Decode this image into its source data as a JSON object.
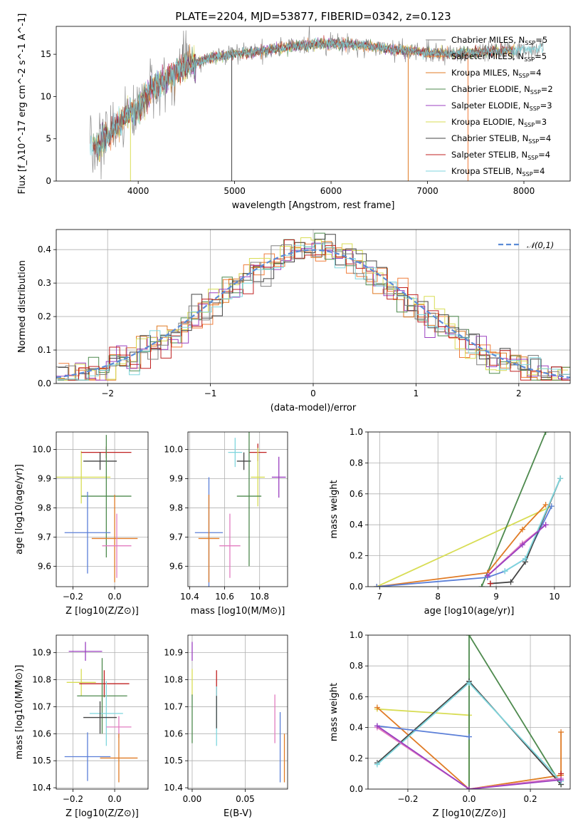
{
  "title": "PLATE=2204, MJD=53877, FIBERID=0342, z=0.123",
  "colors": {
    "c0": "#808080",
    "c1": "#f07d3a",
    "c2": "#e07b25",
    "c3": "#4e8a4e",
    "c4": "#9b40c0",
    "c5": "#d8dd55",
    "c6": "#444444",
    "c7": "#c02020",
    "c8": "#7fd6dd",
    "blue": "#5b7fd8",
    "pink": "#e27cc0",
    "normal": "#5b8bd6"
  },
  "chart_data": [
    {
      "id": "spectrum",
      "type": "line",
      "xlabel": "wavelength [Angstrom, rest frame]",
      "ylabel": "Flux [f_λ10^-17 erg cm^-2 s^-1 A^-1]",
      "xlim": [
        3150,
        8480
      ],
      "ylim": [
        0,
        18.3
      ],
      "xticks": [
        "4000",
        "5000",
        "6000",
        "7000",
        "8000"
      ],
      "yticks": [
        "0",
        "5",
        "10",
        "15"
      ],
      "grid": false,
      "legend": "right",
      "legend_entries": [
        "Chabrier MILES, N_SSP=5",
        "Salpeter MILES, N_SSP=5",
        "Kroupa MILES, N_SSP=4",
        "Chabrier ELODIE, N_SSP=2",
        "Salpeter ELODIE, N_SSP=3",
        "Kroupa ELODIE, N_SSP=3",
        "Chabrier STELIB, N_SSP=4",
        "Salpeter STELIB, N_SSP=4",
        "Kroupa STELIB, N_SSP=4"
      ],
      "continuum": {
        "x": [
          3500,
          3600,
          3700,
          3800,
          3900,
          4000,
          4100,
          4200,
          4300,
          4400,
          4500,
          4600,
          4800,
          5000,
          5200,
          5400,
          5600,
          5800,
          6000,
          6200,
          6400,
          6600,
          6800,
          7000,
          7200,
          7400,
          7600,
          7800,
          8000,
          8200
        ],
        "y": [
          4.0,
          4.3,
          5.5,
          6.8,
          8.0,
          8.5,
          10.5,
          11.5,
          12.0,
          13.0,
          13.5,
          14.0,
          14.7,
          15.0,
          15.3,
          15.6,
          15.9,
          16.2,
          16.3,
          16.2,
          16.0,
          15.6,
          15.4,
          15.2,
          15.0,
          15.2,
          15.3,
          15.4,
          15.5,
          15.8
        ]
      }
    },
    {
      "id": "residuals",
      "type": "histogram",
      "xlabel": "(data-model)/error",
      "ylabel": "Normed distribution",
      "xlim": [
        -2.5,
        2.5
      ],
      "ylim": [
        0,
        0.46
      ],
      "xticks": [
        "−2",
        "−1",
        "0",
        "1",
        "2"
      ],
      "yticks": [
        "0.0",
        "0.1",
        "0.2",
        "0.3",
        "0.4"
      ],
      "grid": true,
      "legend": "top-right",
      "legend_entries": [
        "𝒩(0,1)"
      ]
    },
    {
      "id": "age-vs-z",
      "type": "scatter",
      "xlabel": "Z [log10(Z/Z⊙)]",
      "ylabel": "age  [log10(age/yr)]",
      "xlim": [
        -0.28,
        0.16
      ],
      "ylim": [
        9.53,
        10.06
      ],
      "xticks": [
        "−0.2",
        "0.0"
      ],
      "yticks": [
        "9.6",
        "9.7",
        "9.8",
        "9.9",
        "10.0"
      ],
      "points": [
        {
          "x": -0.16,
          "y": 9.905,
          "xerr": 0.14,
          "yerr": 0.09,
          "c": "c5"
        },
        {
          "x": -0.04,
          "y": 9.99,
          "xerr": 0.12,
          "yerr": 0.02,
          "c": "c7"
        },
        {
          "x": -0.07,
          "y": 9.96,
          "xerr": 0.08,
          "yerr": 0.03,
          "c": "c6"
        },
        {
          "x": -0.04,
          "y": 9.84,
          "xerr": 0.12,
          "yerr": 0.21,
          "c": "c3"
        },
        {
          "x": -0.13,
          "y": 9.715,
          "xerr": 0.11,
          "yerr": 0.14,
          "c": "blue"
        },
        {
          "x": 0.0,
          "y": 9.695,
          "xerr": 0.11,
          "yerr": 0.15,
          "c": "c2"
        },
        {
          "x": 0.01,
          "y": 9.67,
          "xerr": 0.07,
          "yerr": 0.11,
          "c": "pink"
        }
      ]
    },
    {
      "id": "age-vs-mass",
      "type": "scatter",
      "xlabel": "mass [log10(M/M⊙)]",
      "ylabel": "",
      "xlim": [
        10.39,
        10.96
      ],
      "ylim": [
        9.53,
        10.06
      ],
      "xticks": [
        "10.4",
        "10.6",
        "10.8"
      ],
      "yticks": [
        "9.6",
        "9.7",
        "9.8",
        "9.9",
        "10.0"
      ],
      "points": [
        {
          "x": 10.79,
          "y": 9.99,
          "xerr": 0.05,
          "yerr": 0.03,
          "c": "c7"
        },
        {
          "x": 10.66,
          "y": 9.99,
          "xerr": 0.04,
          "yerr": 0.05,
          "c": "c8"
        },
        {
          "x": 10.71,
          "y": 9.96,
          "xerr": 0.04,
          "yerr": 0.03,
          "c": "c6"
        },
        {
          "x": 10.91,
          "y": 9.905,
          "xerr": 0.04,
          "yerr": 0.07,
          "c": "c4"
        },
        {
          "x": 10.79,
          "y": 9.905,
          "xerr": 0.04,
          "yerr": 0.1,
          "c": "c5"
        },
        {
          "x": 10.74,
          "y": 9.84,
          "xerr": 0.07,
          "yerr": 0.24,
          "c": "c3"
        },
        {
          "x": 10.51,
          "y": 9.715,
          "xerr": 0.08,
          "yerr": 0.19,
          "c": "blue"
        },
        {
          "x": 10.51,
          "y": 9.695,
          "xerr": 0.06,
          "yerr": 0.15,
          "c": "c2"
        },
        {
          "x": 10.63,
          "y": 9.67,
          "xerr": 0.06,
          "yerr": 0.11,
          "c": "pink"
        }
      ]
    },
    {
      "id": "massweight-vs-age",
      "type": "line",
      "xlabel": "age  [log10(age/yr)]",
      "ylabel": "mass weight",
      "xlim": [
        6.8,
        10.27
      ],
      "ylim": [
        0,
        1.0
      ],
      "xticks": [
        "7",
        "8",
        "9",
        "10"
      ],
      "yticks": [
        "0.0",
        "0.2",
        "0.4",
        "0.6",
        "0.8",
        "1.0"
      ],
      "series": [
        {
          "c": "c5",
          "x": [
            6.95,
            9.95
          ],
          "y": [
            0.0,
            0.52
          ]
        },
        {
          "c": "c3",
          "x": [
            8.75,
            9.85
          ],
          "y": [
            0.0,
            1.0
          ]
        },
        {
          "c": "c2",
          "x": [
            6.95,
            8.85,
            9.45,
            9.85
          ],
          "y": [
            0.0,
            0.09,
            0.37,
            0.53
          ]
        },
        {
          "c": "blue",
          "x": [
            6.95,
            8.85,
            9.15,
            9.5,
            9.95
          ],
          "y": [
            0.0,
            0.06,
            0.1,
            0.18,
            0.52
          ]
        },
        {
          "c": "pink",
          "x": [
            8.85,
            9.45,
            9.85
          ],
          "y": [
            0.07,
            0.28,
            0.4
          ]
        },
        {
          "c": "c6",
          "x": [
            8.9,
            9.25,
            9.5,
            10.1
          ],
          "y": [
            0.02,
            0.03,
            0.16,
            0.7
          ]
        },
        {
          "c": "c8",
          "x": [
            9.15,
            9.5,
            10.1
          ],
          "y": [
            0.1,
            0.18,
            0.7
          ]
        },
        {
          "c": "c4",
          "x": [
            8.85,
            9.45,
            9.85
          ],
          "y": [
            0.07,
            0.27,
            0.4
          ]
        },
        {
          "c": "c7",
          "x": [
            8.9
          ],
          "y": [
            0.02
          ]
        }
      ]
    },
    {
      "id": "mass-vs-z",
      "type": "scatter",
      "xlabel": "Z [log10(Z/Z⊙)]",
      "ylabel": "mass [log10(M/M⊙)]",
      "xlim": [
        -0.28,
        0.16
      ],
      "ylim": [
        10.395,
        10.965
      ],
      "xticks": [
        "−0.2",
        "0.0"
      ],
      "yticks": [
        "10.4",
        "10.5",
        "10.6",
        "10.7",
        "10.8",
        "10.9"
      ],
      "points": [
        {
          "x": -0.14,
          "y": 10.905,
          "xerr": 0.08,
          "yerr": 0.035,
          "c": "c4"
        },
        {
          "x": -0.16,
          "y": 10.79,
          "xerr": 0.07,
          "yerr": 0.05,
          "c": "c5"
        },
        {
          "x": -0.05,
          "y": 10.785,
          "xerr": 0.12,
          "yerr": 0.05,
          "c": "c7"
        },
        {
          "x": -0.06,
          "y": 10.74,
          "xerr": 0.12,
          "yerr": 0.14,
          "c": "c3"
        },
        {
          "x": -0.04,
          "y": 10.675,
          "xerr": 0.08,
          "yerr": 0.12,
          "c": "c8"
        },
        {
          "x": -0.07,
          "y": 10.66,
          "xerr": 0.08,
          "yerr": 0.06,
          "c": "c6"
        },
        {
          "x": 0.02,
          "y": 10.625,
          "xerr": 0.06,
          "yerr": 0.04,
          "c": "pink"
        },
        {
          "x": -0.13,
          "y": 10.515,
          "xerr": 0.11,
          "yerr": 0.09,
          "c": "blue"
        },
        {
          "x": 0.02,
          "y": 10.51,
          "xerr": 0.09,
          "yerr": 0.09,
          "c": "c2"
        }
      ]
    },
    {
      "id": "mass-vs-ebv",
      "type": "scatter",
      "xlabel": "E(B-V)",
      "ylabel": "",
      "xlim": [
        -0.004,
        0.09
      ],
      "ylim": [
        10.395,
        10.965
      ],
      "xticks": [
        "0.00",
        "0.05"
      ],
      "yticks": [
        "10.4",
        "10.5",
        "10.6",
        "10.7",
        "10.8",
        "10.9"
      ],
      "points": [
        {
          "x": 0.0,
          "y": 10.905,
          "xerr": 0,
          "yerr": 0.035,
          "c": "c4"
        },
        {
          "x": 0.0,
          "y": 10.79,
          "xerr": 0,
          "yerr": 0.05,
          "c": "c5"
        },
        {
          "x": 0.0,
          "y": 10.655,
          "xerr": 0,
          "yerr": 0.09,
          "c": "c3"
        },
        {
          "x": 0.023,
          "y": 10.785,
          "xerr": 0,
          "yerr": 0.05,
          "c": "c7"
        },
        {
          "x": 0.023,
          "y": 10.665,
          "xerr": 0,
          "yerr": 0.11,
          "c": "c8"
        },
        {
          "x": 0.023,
          "y": 10.68,
          "xerr": 0,
          "yerr": 0.06,
          "c": "c6"
        },
        {
          "x": 0.078,
          "y": 10.655,
          "xerr": 0,
          "yerr": 0.09,
          "c": "pink"
        },
        {
          "x": 0.083,
          "y": 10.55,
          "xerr": 0,
          "yerr": 0.13,
          "c": "blue"
        },
        {
          "x": 0.087,
          "y": 10.51,
          "xerr": 0,
          "yerr": 0.09,
          "c": "c2"
        }
      ]
    },
    {
      "id": "massweight-vs-z",
      "type": "line",
      "xlabel": "Z [log10(Z/Z⊙)]",
      "ylabel": "mass weight",
      "xlim": [
        -0.33,
        0.33
      ],
      "ylim": [
        0,
        1.0
      ],
      "xticks": [
        "−0.2",
        "0.0",
        "0.2"
      ],
      "yticks": [
        "0.0",
        "0.2",
        "0.4",
        "0.6",
        "0.8",
        "1.0"
      ],
      "series": [
        {
          "c": "c5",
          "x": [
            -0.3,
            0.0,
            0.0,
            0.3
          ],
          "y": [
            0.52,
            0.48,
            0.0,
            0.09
          ]
        },
        {
          "c": "c2",
          "x": [
            -0.3,
            0.0,
            0.3,
            0.3
          ],
          "y": [
            0.53,
            0.0,
            0.09,
            0.37
          ]
        },
        {
          "c": "c3",
          "x": [
            0.0,
            0.0,
            0.3
          ],
          "y": [
            0.0,
            1.0,
            0.03
          ]
        },
        {
          "c": "c6",
          "x": [
            -0.3,
            0.0,
            0.3
          ],
          "y": [
            0.17,
            0.7,
            0.03
          ]
        },
        {
          "c": "c8",
          "x": [
            -0.3,
            0.0,
            0.3
          ],
          "y": [
            0.16,
            0.69,
            0.05
          ]
        },
        {
          "c": "blue",
          "x": [
            -0.3,
            0.0
          ],
          "y": [
            0.41,
            0.34
          ]
        },
        {
          "c": "pink",
          "x": [
            -0.3,
            0.0,
            0.3
          ],
          "y": [
            0.4,
            0.0,
            0.07
          ]
        },
        {
          "c": "c4",
          "x": [
            -0.3,
            0.0,
            0.3
          ],
          "y": [
            0.41,
            0.0,
            0.06
          ]
        },
        {
          "c": "c7",
          "x": [
            0.3
          ],
          "y": [
            0.1
          ]
        }
      ]
    }
  ]
}
